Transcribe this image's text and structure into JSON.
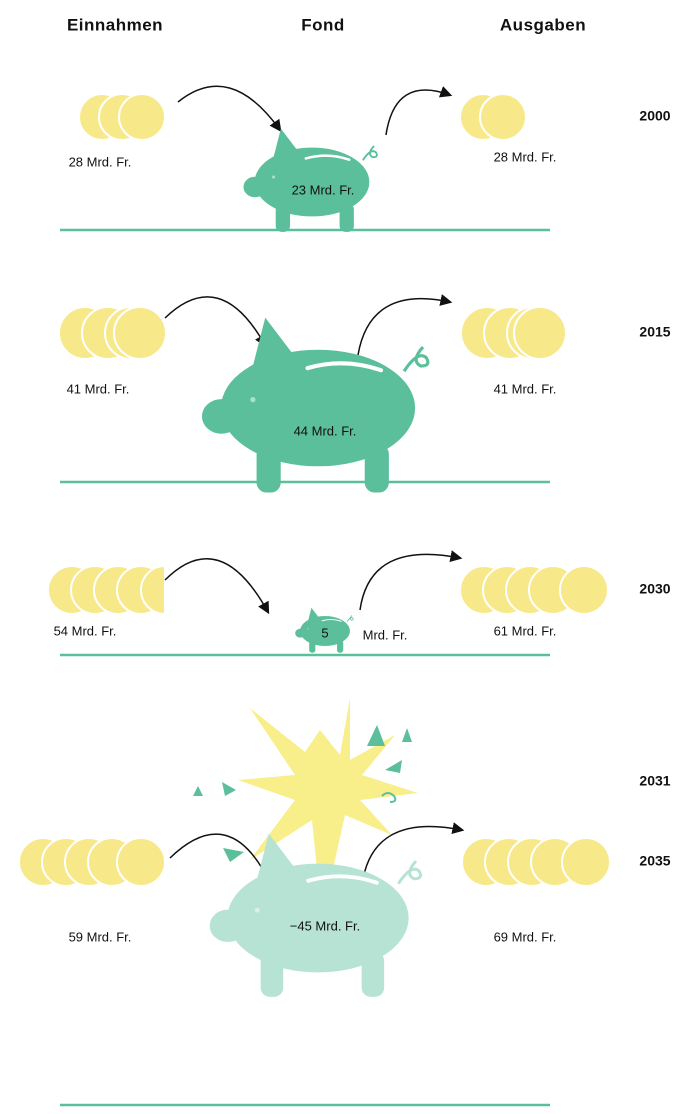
{
  "header": {
    "income": "Einnahmen",
    "fund": "Fond",
    "expenses": "Ausgaben"
  },
  "rows": [
    {
      "year": "2000",
      "income": "28 Mrd. Fr.",
      "fund": "23 Mrd. Fr.",
      "expenses": "28 Mrd. Fr."
    },
    {
      "year": "2015",
      "income": "41 Mrd. Fr.",
      "fund": "44 Mrd. Fr.",
      "expenses": "41 Mrd. Fr."
    },
    {
      "year": "2030",
      "income": "54 Mrd. Fr.",
      "fund": "5",
      "fund_unit": "Mrd. Fr.",
      "expenses": "61 Mrd. Fr."
    },
    {
      "year": "2031"
    },
    {
      "year": "2035",
      "income": "59 Mrd. Fr.",
      "fund": "−45 Mrd. Fr.",
      "expenses": "69 Mrd. Fr."
    }
  ]
}
